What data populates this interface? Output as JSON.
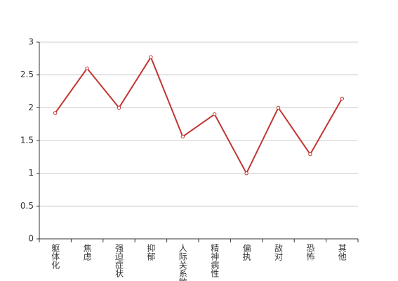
{
  "chart_data": {
    "type": "line",
    "categories": [
      "躯体化",
      "焦虑",
      "强迫症状",
      "抑郁",
      "人际关系敏感",
      "精神病性",
      "偏执",
      "敌对",
      "恐怖",
      "其他"
    ],
    "values": [
      1.92,
      2.6,
      2.0,
      2.77,
      1.56,
      1.9,
      1.0,
      2.0,
      1.29,
      2.14
    ],
    "color": "#c23531",
    "ylim": [
      0,
      3
    ],
    "yticks": [
      0,
      0.5,
      1,
      1.5,
      2,
      2.5,
      3
    ],
    "grid": true
  }
}
